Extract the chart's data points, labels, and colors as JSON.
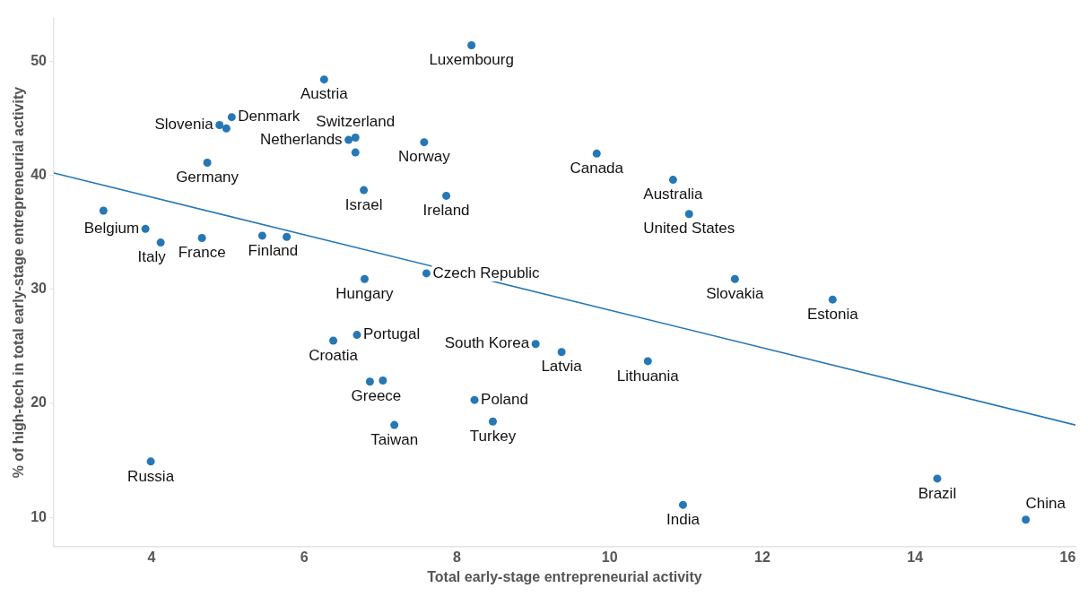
{
  "chart_data": {
    "type": "scatter",
    "xlabel": "Total early-stage entrepreneurial activity",
    "ylabel": "% of high-tech in total early-stage entrepreneurial activity",
    "xlim": [
      2.72,
      16.1
    ],
    "ylim": [
      7.45,
      53.75
    ],
    "xticks": [
      4,
      6,
      8,
      10,
      12,
      14,
      16
    ],
    "yticks": [
      10,
      20,
      30,
      40,
      50
    ],
    "grid": false,
    "legend": false,
    "marker": "circle",
    "series": [
      {
        "type": "scatter",
        "color": "#2677b5",
        "x": [
          8.19,
          6.26,
          4.89,
          4.98,
          5.05,
          6.67,
          6.58,
          6.67,
          7.57,
          9.83,
          4.73,
          10.83,
          6.78,
          7.86,
          11.04,
          3.37,
          3.92,
          4.12,
          4.66,
          5.45,
          5.77,
          6.79,
          7.6,
          11.64,
          12.92,
          6.69,
          6.38,
          9.03,
          9.37,
          10.5,
          6.86,
          7.03,
          8.23,
          8.47,
          7.18,
          3.99,
          14.29,
          10.96,
          15.45
        ],
        "values": [
          51.4,
          48.4,
          44.4,
          44.1,
          45.1,
          43.3,
          43.1,
          42.0,
          42.9,
          41.9,
          41.1,
          39.6,
          38.7,
          38.2,
          36.6,
          36.9,
          35.3,
          34.1,
          34.5,
          34.7,
          34.6,
          30.9,
          31.4,
          30.9,
          29.1,
          26.0,
          25.5,
          25.2,
          24.5,
          23.7,
          21.9,
          22.0,
          20.3,
          18.4,
          18.1,
          14.9,
          13.4,
          11.1,
          9.8
        ]
      },
      {
        "type": "line",
        "color": "#2677b5",
        "marker": "none",
        "x": [
          2.72,
          16.1
        ],
        "values": [
          40.2,
          18.1
        ]
      }
    ],
    "annotations": [
      {
        "text": "Luxembourg",
        "x": 8.19,
        "y": 51.4
      },
      {
        "text": "Austria",
        "x": 6.26,
        "y": 48.4
      },
      {
        "text": "Slovenia",
        "x": 4.89,
        "y": 44.4
      },
      {
        "text": "Denmark",
        "x": 5.05,
        "y": 45.1
      },
      {
        "text": "Switzerland",
        "x": 6.67,
        "y": 43.3
      },
      {
        "text": "Netherlands",
        "x": 6.58,
        "y": 43.1
      },
      {
        "text": "Norway",
        "x": 7.57,
        "y": 42.9
      },
      {
        "text": "Canada",
        "x": 9.83,
        "y": 41.9
      },
      {
        "text": "Germany",
        "x": 4.73,
        "y": 41.1
      },
      {
        "text": "Australia",
        "x": 10.83,
        "y": 39.6
      },
      {
        "text": "Israel",
        "x": 6.78,
        "y": 38.7
      },
      {
        "text": "Ireland",
        "x": 7.86,
        "y": 38.2
      },
      {
        "text": "United States",
        "x": 11.04,
        "y": 36.6
      },
      {
        "text": "Belgium",
        "x": 3.92,
        "y": 35.3
      },
      {
        "text": "Italy",
        "x": 4.12,
        "y": 34.1
      },
      {
        "text": "France",
        "x": 4.66,
        "y": 34.5
      },
      {
        "text": "Finland",
        "x": 5.45,
        "y": 34.7
      },
      {
        "text": "Hungary",
        "x": 6.79,
        "y": 30.9
      },
      {
        "text": "Czech Republic",
        "x": 7.6,
        "y": 31.4
      },
      {
        "text": "Slovakia",
        "x": 11.64,
        "y": 30.9
      },
      {
        "text": "Estonia",
        "x": 12.92,
        "y": 29.1
      },
      {
        "text": "Portugal",
        "x": 6.69,
        "y": 26.0
      },
      {
        "text": "Croatia",
        "x": 6.38,
        "y": 25.5
      },
      {
        "text": "South Korea",
        "x": 9.03,
        "y": 25.2
      },
      {
        "text": "Latvia",
        "x": 9.37,
        "y": 24.5
      },
      {
        "text": "Lithuania",
        "x": 10.5,
        "y": 23.7
      },
      {
        "text": "Greece",
        "x": 6.86,
        "y": 21.9
      },
      {
        "text": "Poland",
        "x": 8.23,
        "y": 20.3
      },
      {
        "text": "Turkey",
        "x": 8.47,
        "y": 18.4
      },
      {
        "text": "Taiwan",
        "x": 7.18,
        "y": 18.1
      },
      {
        "text": "Russia",
        "x": 3.99,
        "y": 14.9
      },
      {
        "text": "Brazil",
        "x": 14.29,
        "y": 13.4
      },
      {
        "text": "India",
        "x": 10.96,
        "y": 11.1
      },
      {
        "text": "China",
        "x": 15.45,
        "y": 9.8
      }
    ]
  }
}
